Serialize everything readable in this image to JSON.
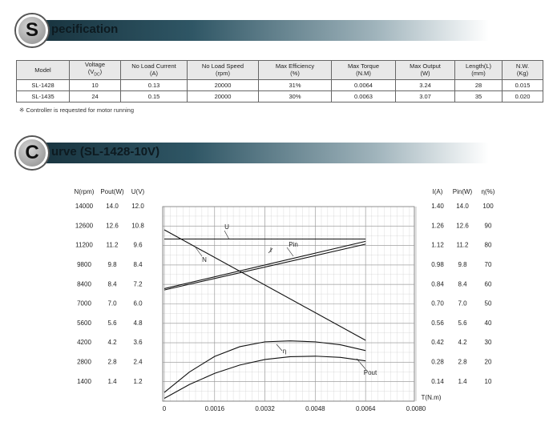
{
  "header1": {
    "letter": "S",
    "text": "pecification"
  },
  "table": {
    "columns": [
      [
        "Model"
      ],
      [
        "Voltage",
        "(V",
        "DC",
        ")"
      ],
      [
        "No Load Current",
        "(A)"
      ],
      [
        "No Load Speed",
        "(rpm)"
      ],
      [
        "Max Efficiency",
        "(%)"
      ],
      [
        "Max Torque",
        "(N.M)"
      ],
      [
        "Max Output",
        "(W)"
      ],
      [
        "Length(L)",
        "(mm)"
      ],
      [
        "N.W.",
        "(Kg)"
      ]
    ],
    "rows": [
      [
        "SL-1428",
        "10",
        "0.13",
        "20000",
        "31%",
        "0.0064",
        "3.24",
        "28",
        "0.015"
      ],
      [
        "SL-1435",
        "24",
        "0.15",
        "20000",
        "30%",
        "0.0063",
        "3.07",
        "35",
        "0.020"
      ]
    ]
  },
  "note": "※ Controller is requested for motor running",
  "header2": {
    "letter": "C",
    "text": "urve (SL-1428-10V)"
  },
  "chart_data": {
    "type": "line",
    "x_label": "T(N.m)",
    "xlim": [
      0,
      0.008
    ],
    "xticks": [
      0,
      0.0016,
      0.0032,
      0.0048,
      0.0064,
      {
        "value": 0.008,
        "label": "0.0080"
      }
    ],
    "grid": true,
    "axes": [
      {
        "label": "N(rpm)",
        "ylim": [
          0,
          14000
        ],
        "yticks": [
          14000,
          12600,
          11200,
          9800,
          8400,
          7000,
          5600,
          4200,
          2800,
          1400
        ]
      },
      {
        "label": "Pout(W)",
        "ylim": [
          0,
          14
        ],
        "yticks": [
          {
            "value": 14,
            "label": "14.0"
          },
          12.6,
          11.2,
          9.8,
          8.4,
          {
            "value": 7,
            "label": "7.0"
          },
          5.6,
          4.2,
          2.8,
          1.4
        ]
      },
      {
        "label": "U(V)",
        "ylim": [
          0,
          12
        ],
        "yticks": [
          {
            "value": 12,
            "label": "12.0"
          },
          10.8,
          9.6,
          8.4,
          7.2,
          {
            "value": 6,
            "label": "6.0"
          },
          4.8,
          3.6,
          2.4,
          1.2
        ]
      },
      {
        "label": "I(A)",
        "ylim": [
          0,
          1.4
        ],
        "yticks": [
          {
            "value": 1.4,
            "label": "1.40"
          },
          1.26,
          1.12,
          0.98,
          0.84,
          {
            "value": 0.7,
            "label": "0.70"
          },
          0.56,
          0.42,
          0.28,
          0.14
        ]
      },
      {
        "label": "Pin(W)",
        "ylim": [
          0,
          14
        ],
        "yticks": [
          {
            "value": 14,
            "label": "14.0"
          },
          12.6,
          11.2,
          9.8,
          8.4,
          {
            "value": 7,
            "label": "7.0"
          },
          5.6,
          4.2,
          2.8,
          1.4
        ]
      },
      {
        "label": "η(%)",
        "ylim": [
          0,
          100
        ],
        "yticks": [
          100,
          90,
          80,
          70,
          60,
          50,
          40,
          30,
          20,
          10
        ]
      }
    ],
    "series": [
      {
        "name": "U",
        "axis": 2,
        "color": "#111111",
        "x": [
          0,
          0.0064
        ],
        "values": [
          10,
          10
        ]
      },
      {
        "name": "N",
        "axis": 0,
        "color": "#111111",
        "x": [
          0,
          0.0064
        ],
        "values": [
          12330,
          4380
        ]
      },
      {
        "name": "I",
        "axis": 3,
        "color": "#111111",
        "x": [
          0,
          0.0064
        ],
        "values": [
          0.8,
          1.13
        ]
      },
      {
        "name": "Pin",
        "axis": 4,
        "color": "#111111",
        "x": [
          0,
          0.0064
        ],
        "values": [
          8.1,
          11.5
        ]
      },
      {
        "name": "η",
        "axis": 5,
        "color": "#111111",
        "x": [
          0,
          0.0008,
          0.0016,
          0.0024,
          0.0032,
          0.004,
          0.0048,
          0.0056,
          0.0064
        ],
        "values": [
          4.5,
          15,
          23,
          28,
          30.5,
          31,
          30.5,
          29,
          26
        ]
      },
      {
        "name": "Pout",
        "axis": 1,
        "color": "#111111",
        "x": [
          0,
          0.0008,
          0.0016,
          0.0024,
          0.0032,
          0.004,
          0.0048,
          0.0056,
          0.0064
        ],
        "values": [
          0.2,
          1.2,
          2.0,
          2.6,
          3.0,
          3.2,
          3.24,
          3.15,
          2.9
        ]
      }
    ]
  }
}
